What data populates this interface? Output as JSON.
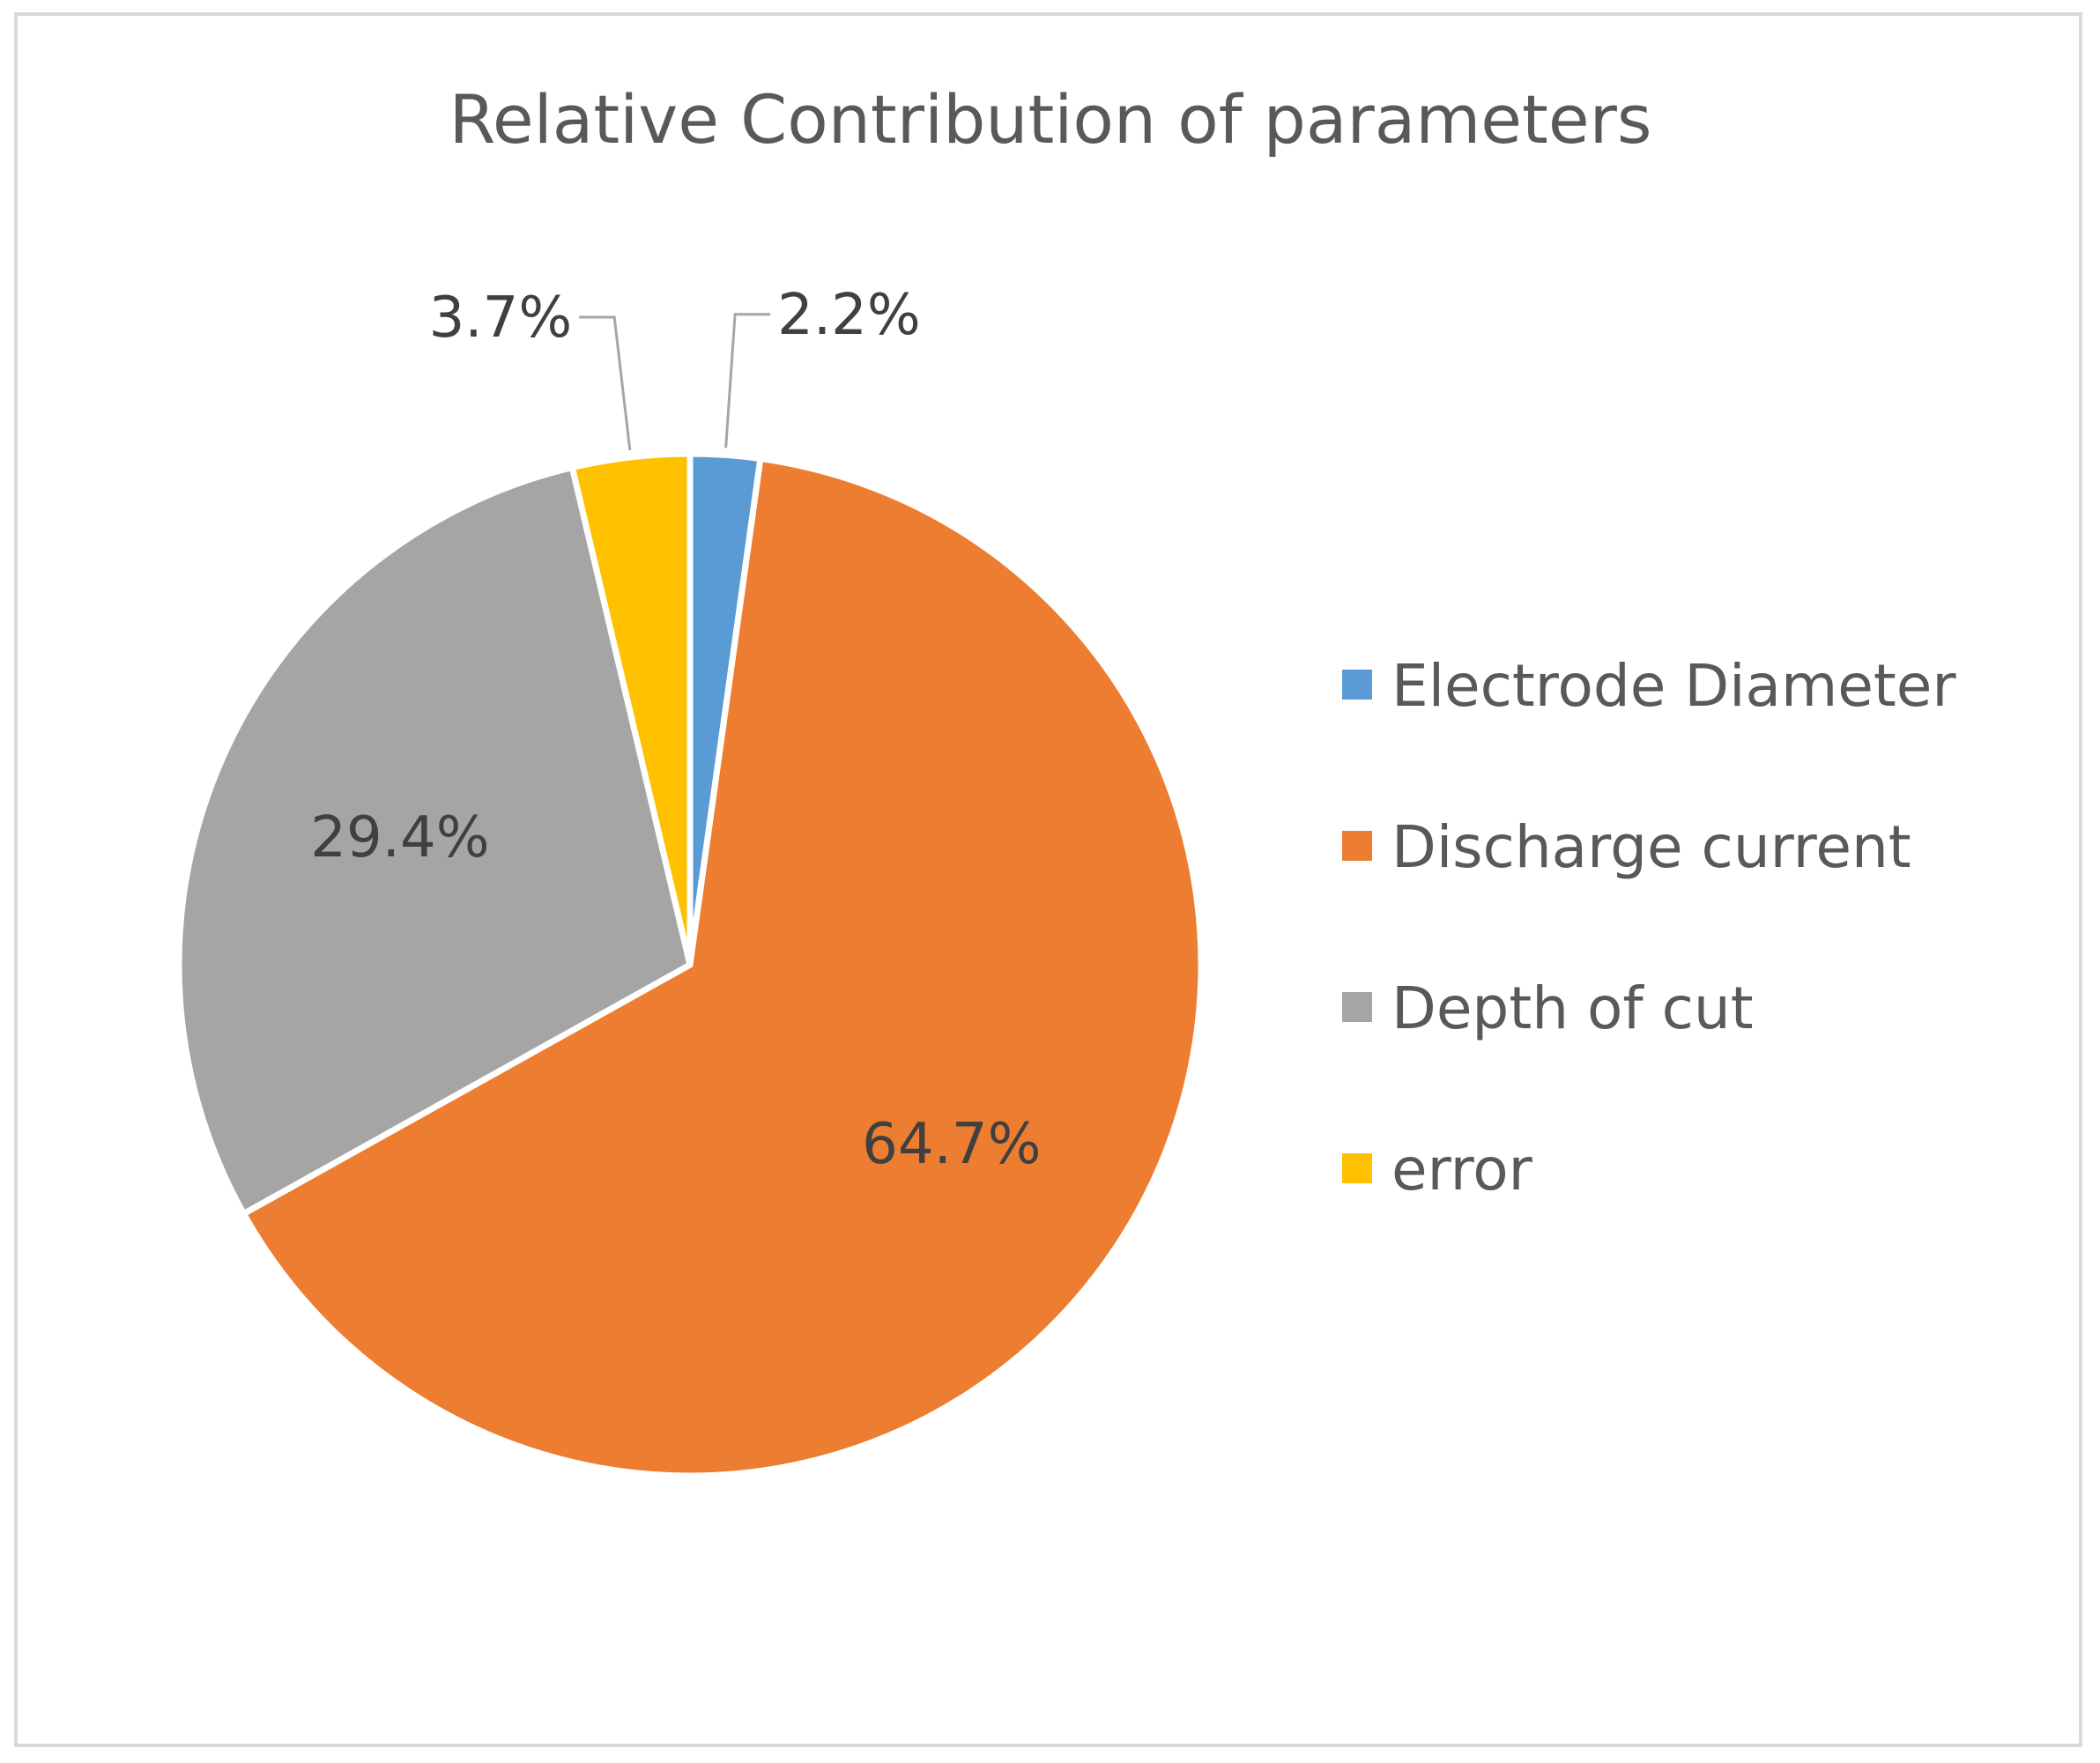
{
  "chart_data": {
    "type": "pie",
    "title": "Relative Contribution of parameters",
    "categories": [
      "Electrode Diameter",
      "Discharge current",
      "Depth of cut",
      "error"
    ],
    "values": [
      2.2,
      64.7,
      29.4,
      3.7
    ],
    "value_labels": [
      "2.2%",
      "64.7%",
      "29.4%",
      "3.7%"
    ],
    "colors": [
      "#5B9BD5",
      "#ED7D31",
      "#A5A5A5",
      "#FFC000"
    ],
    "legend_position": "right",
    "start_angle": "top, clockwise"
  }
}
